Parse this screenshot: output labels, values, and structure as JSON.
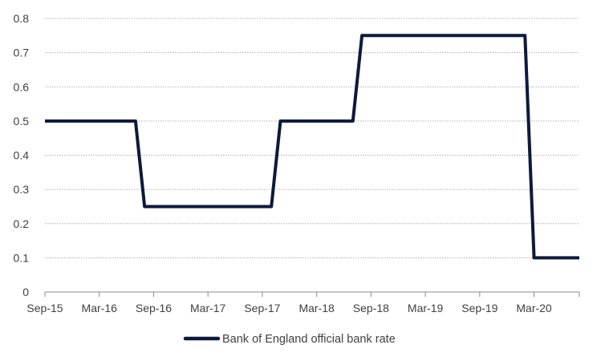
{
  "chart_data": {
    "type": "line",
    "series": [
      {
        "name": "Bank of England official bank rate",
        "color": "#0d1a3d",
        "points": [
          [
            "2015-09",
            0.5
          ],
          [
            "2015-10",
            0.5
          ],
          [
            "2015-11",
            0.5
          ],
          [
            "2015-12",
            0.5
          ],
          [
            "2016-01",
            0.5
          ],
          [
            "2016-02",
            0.5
          ],
          [
            "2016-03",
            0.5
          ],
          [
            "2016-04",
            0.5
          ],
          [
            "2016-05",
            0.5
          ],
          [
            "2016-06",
            0.5
          ],
          [
            "2016-07",
            0.5
          ],
          [
            "2016-08",
            0.25
          ],
          [
            "2016-09",
            0.25
          ],
          [
            "2016-10",
            0.25
          ],
          [
            "2016-11",
            0.25
          ],
          [
            "2016-12",
            0.25
          ],
          [
            "2017-01",
            0.25
          ],
          [
            "2017-02",
            0.25
          ],
          [
            "2017-03",
            0.25
          ],
          [
            "2017-04",
            0.25
          ],
          [
            "2017-05",
            0.25
          ],
          [
            "2017-06",
            0.25
          ],
          [
            "2017-07",
            0.25
          ],
          [
            "2017-08",
            0.25
          ],
          [
            "2017-09",
            0.25
          ],
          [
            "2017-10",
            0.25
          ],
          [
            "2017-11",
            0.5
          ],
          [
            "2017-12",
            0.5
          ],
          [
            "2018-01",
            0.5
          ],
          [
            "2018-02",
            0.5
          ],
          [
            "2018-03",
            0.5
          ],
          [
            "2018-04",
            0.5
          ],
          [
            "2018-05",
            0.5
          ],
          [
            "2018-06",
            0.5
          ],
          [
            "2018-07",
            0.5
          ],
          [
            "2018-08",
            0.75
          ],
          [
            "2018-09",
            0.75
          ],
          [
            "2018-10",
            0.75
          ],
          [
            "2018-11",
            0.75
          ],
          [
            "2018-12",
            0.75
          ],
          [
            "2019-01",
            0.75
          ],
          [
            "2019-02",
            0.75
          ],
          [
            "2019-03",
            0.75
          ],
          [
            "2019-04",
            0.75
          ],
          [
            "2019-05",
            0.75
          ],
          [
            "2019-06",
            0.75
          ],
          [
            "2019-07",
            0.75
          ],
          [
            "2019-08",
            0.75
          ],
          [
            "2019-09",
            0.75
          ],
          [
            "2019-10",
            0.75
          ],
          [
            "2019-11",
            0.75
          ],
          [
            "2019-12",
            0.75
          ],
          [
            "2020-01",
            0.75
          ],
          [
            "2020-02",
            0.75
          ],
          [
            "2020-03",
            0.1
          ],
          [
            "2020-04",
            0.1
          ],
          [
            "2020-05",
            0.1
          ],
          [
            "2020-06",
            0.1
          ],
          [
            "2020-07",
            0.1
          ],
          [
            "2020-08",
            0.1
          ]
        ]
      }
    ],
    "x_tick_labels": [
      "Sep-15",
      "Mar-16",
      "Sep-16",
      "Mar-17",
      "Sep-17",
      "Mar-18",
      "Sep-18",
      "Mar-19",
      "Sep-19",
      "Mar-20"
    ],
    "x_tick_months": [
      "2015-09",
      "2016-03",
      "2016-09",
      "2017-03",
      "2017-09",
      "2018-03",
      "2018-09",
      "2019-03",
      "2019-09",
      "2020-03"
    ],
    "y_ticks": [
      0,
      0.1,
      0.2,
      0.3,
      0.4,
      0.5,
      0.6,
      0.7,
      0.8
    ],
    "y_tick_labels": [
      "0",
      "0.1",
      "0.2",
      "0.3",
      "0.4",
      "0.5",
      "0.6",
      "0.7",
      "0.8"
    ],
    "ylim": [
      0,
      0.8
    ],
    "xlim": [
      "2015-09",
      "2020-08"
    ],
    "grid": true,
    "legend_placement": "bottom-center",
    "colors": {
      "grid": "#b0b0b0",
      "axis": "#888888",
      "line": "#0d1a3d",
      "text": "#404040"
    }
  }
}
